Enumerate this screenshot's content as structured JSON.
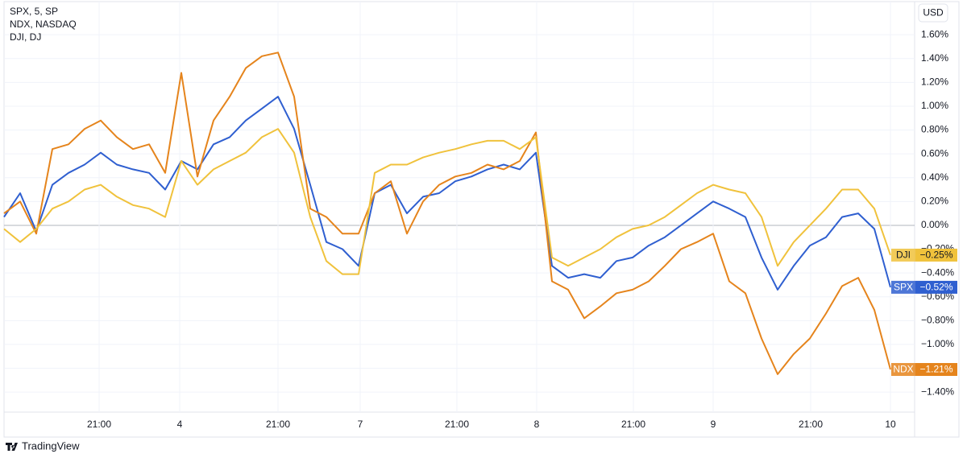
{
  "chart_data": {
    "type": "line",
    "currency": "USD",
    "brand": "TradingView",
    "x": [
      0,
      1,
      2,
      3,
      4,
      5,
      6,
      7,
      8,
      9,
      10,
      11,
      12,
      13,
      14,
      15,
      16,
      17,
      18,
      19,
      20,
      21,
      22,
      23,
      24,
      25,
      26,
      27,
      28,
      29,
      30,
      31,
      32,
      33,
      34,
      35,
      36,
      37,
      38,
      39,
      40,
      41,
      42,
      43,
      44,
      45,
      46,
      47,
      48,
      49,
      50,
      51,
      52,
      53,
      54,
      55
    ],
    "xlim": [
      0,
      56.5
    ],
    "xticks": [
      {
        "value": 5.9,
        "label": "21:00"
      },
      {
        "value": 10.9,
        "label": "4"
      },
      {
        "value": 17,
        "label": "21:00"
      },
      {
        "value": 22.1,
        "label": "7"
      },
      {
        "value": 28.1,
        "label": "21:00"
      },
      {
        "value": 33.05,
        "label": "8"
      },
      {
        "value": 39.05,
        "label": "21:00"
      },
      {
        "value": 44,
        "label": "9"
      },
      {
        "value": 50.05,
        "label": "21:00"
      },
      {
        "value": 55,
        "label": "10"
      }
    ],
    "ylim": [
      -1.568,
      1.878
    ],
    "yticks": [
      {
        "value": 1.6,
        "label": "1.60%"
      },
      {
        "value": 1.4,
        "label": "1.40%"
      },
      {
        "value": 1.2,
        "label": "1.20%"
      },
      {
        "value": 1.0,
        "label": "1.00%"
      },
      {
        "value": 0.8,
        "label": "0.80%"
      },
      {
        "value": 0.6,
        "label": "0.60%"
      },
      {
        "value": 0.4,
        "label": "0.40%"
      },
      {
        "value": 0.2,
        "label": "0.20%"
      },
      {
        "value": 0,
        "label": "0.00%"
      },
      {
        "value": -0.2,
        "label": "−0.20%"
      },
      {
        "value": -0.4,
        "label": "−0.40%"
      },
      {
        "value": -0.6,
        "label": "−0.60%"
      },
      {
        "value": -0.8,
        "label": "−0.80%"
      },
      {
        "value": -1.0,
        "label": "−1.00%"
      },
      {
        "value": -1.2,
        "label": "−1.20%"
      },
      {
        "value": -1.4,
        "label": "−1.40%"
      }
    ],
    "grid": true,
    "series": [
      {
        "name": "SPX, 5, SP",
        "tag": "SPX",
        "color": "#2f5fd0",
        "value_label": "−0.52%",
        "values": [
          0.07,
          0.27,
          -0.05,
          0.34,
          0.44,
          0.51,
          0.61,
          0.51,
          0.47,
          0.44,
          0.3,
          0.54,
          0.47,
          0.68,
          0.74,
          0.88,
          0.98,
          1.08,
          0.81,
          0.34,
          -0.14,
          -0.2,
          -0.34,
          0.27,
          0.34,
          0.1,
          0.24,
          0.27,
          0.37,
          0.41,
          0.47,
          0.51,
          0.47,
          0.61,
          -0.34,
          -0.44,
          -0.41,
          -0.44,
          -0.3,
          -0.27,
          -0.17,
          -0.1,
          0.0,
          0.1,
          0.2,
          0.14,
          0.07,
          -0.27,
          -0.54,
          -0.34,
          -0.17,
          -0.1,
          0.07,
          0.1,
          -0.03,
          -0.52
        ]
      },
      {
        "name": "NDX, NASDAQ",
        "tag": "NDX",
        "color": "#e5841c",
        "value_label": "−1.21%",
        "values": [
          0.1,
          0.2,
          -0.07,
          0.64,
          0.68,
          0.81,
          0.88,
          0.74,
          0.64,
          0.68,
          0.44,
          1.28,
          0.41,
          0.88,
          1.08,
          1.32,
          1.42,
          1.45,
          1.08,
          0.14,
          0.07,
          -0.07,
          -0.07,
          0.27,
          0.37,
          -0.07,
          0.2,
          0.34,
          0.41,
          0.44,
          0.51,
          0.47,
          0.54,
          0.78,
          -0.47,
          -0.54,
          -0.78,
          -0.68,
          -0.57,
          -0.54,
          -0.47,
          -0.34,
          -0.2,
          -0.14,
          -0.07,
          -0.47,
          -0.57,
          -0.95,
          -1.25,
          -1.08,
          -0.95,
          -0.74,
          -0.51,
          -0.44,
          -0.71,
          -1.21
        ]
      },
      {
        "name": "DJI, DJ",
        "tag": "DJI",
        "color": "#f0c23c",
        "value_label": "−0.25%",
        "values": [
          -0.03,
          -0.14,
          -0.03,
          0.14,
          0.2,
          0.3,
          0.34,
          0.24,
          0.17,
          0.14,
          0.07,
          0.54,
          0.34,
          0.47,
          0.54,
          0.61,
          0.74,
          0.81,
          0.61,
          0.07,
          -0.3,
          -0.41,
          -0.41,
          0.44,
          0.51,
          0.51,
          0.57,
          0.61,
          0.64,
          0.68,
          0.71,
          0.71,
          0.64,
          0.74,
          -0.27,
          -0.34,
          -0.27,
          -0.2,
          -0.1,
          -0.03,
          0.0,
          0.07,
          0.17,
          0.27,
          0.34,
          0.3,
          0.27,
          0.07,
          -0.34,
          -0.14,
          0.0,
          0.14,
          0.3,
          0.3,
          0.14,
          -0.25
        ]
      }
    ]
  }
}
